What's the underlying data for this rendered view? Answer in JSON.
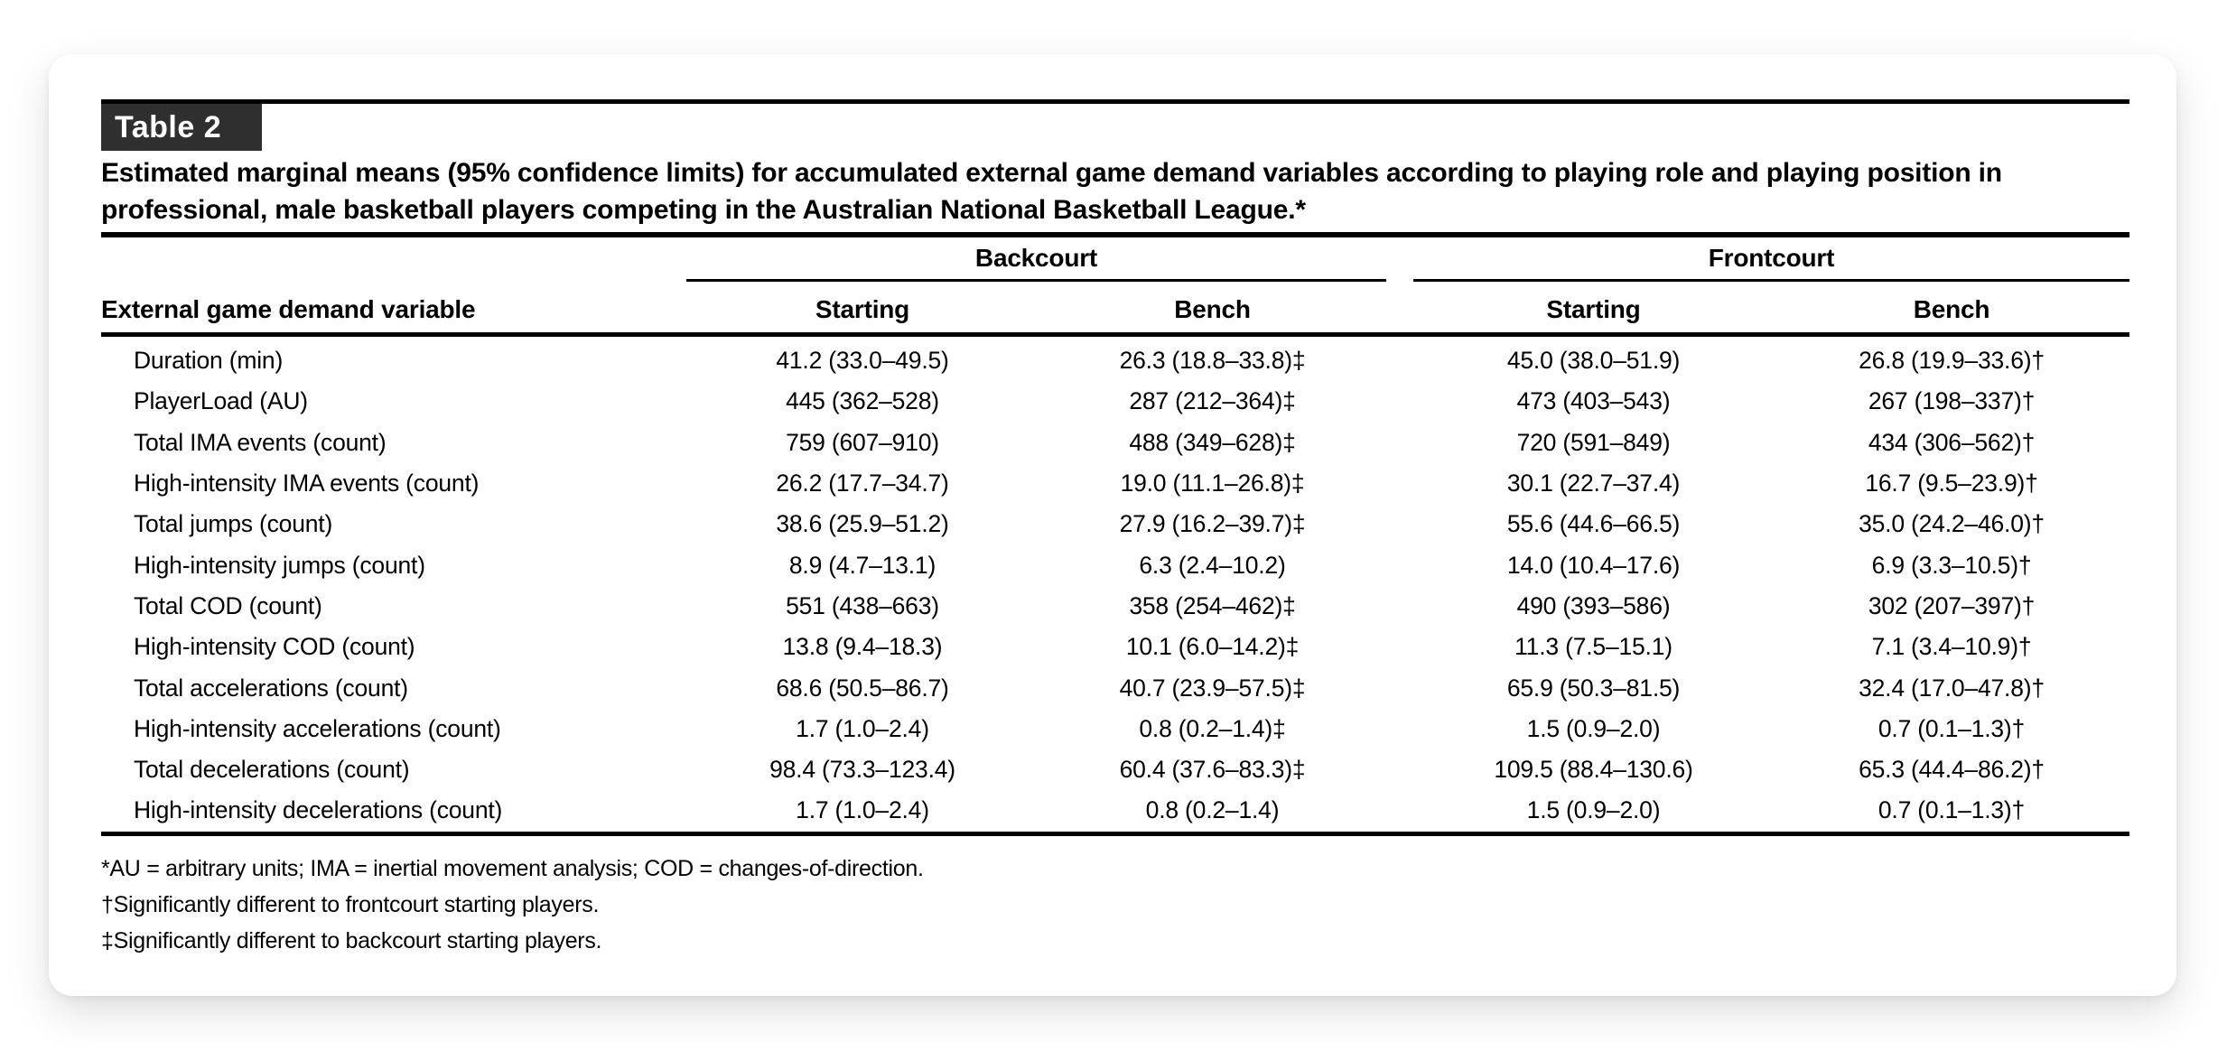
{
  "colors": {
    "badge_bg": "#2f2f2f",
    "badge_text": "#ffffff",
    "card_bg": "#ffffff",
    "rule": "#000000",
    "text": "#000000"
  },
  "table": {
    "badge": "Table 2",
    "title": "Estimated marginal means (95% confidence limits) for accumulated external game demand variables according to playing role and playing position in professional, male basketball players competing in the Australian National Basketball League.*",
    "variable_header": "External game demand variable",
    "groups": [
      {
        "label": "Backcourt",
        "columns": [
          "Starting",
          "Bench"
        ]
      },
      {
        "label": "Frontcourt",
        "columns": [
          "Starting",
          "Bench"
        ]
      }
    ],
    "rows": [
      {
        "variable": "Duration (min)",
        "values": [
          "41.2 (33.0–49.5)",
          "26.3 (18.8–33.8)‡",
          "45.0 (38.0–51.9)",
          "26.8 (19.9–33.6)†"
        ]
      },
      {
        "variable": "PlayerLoad (AU)",
        "values": [
          "445 (362–528)",
          "287 (212–364)‡",
          "473 (403–543)",
          "267 (198–337)†"
        ]
      },
      {
        "variable": "Total IMA events (count)",
        "values": [
          "759 (607–910)",
          "488 (349–628)‡",
          "720 (591–849)",
          "434 (306–562)†"
        ]
      },
      {
        "variable": "High-intensity IMA events (count)",
        "values": [
          "26.2 (17.7–34.7)",
          "19.0 (11.1–26.8)‡",
          "30.1 (22.7–37.4)",
          "16.7 (9.5–23.9)†"
        ]
      },
      {
        "variable": "Total jumps (count)",
        "values": [
          "38.6 (25.9–51.2)",
          "27.9 (16.2–39.7)‡",
          "55.6 (44.6–66.5)",
          "35.0 (24.2–46.0)†"
        ]
      },
      {
        "variable": "High-intensity jumps (count)",
        "values": [
          "8.9 (4.7–13.1)",
          "6.3 (2.4–10.2)",
          "14.0 (10.4–17.6)",
          "6.9 (3.3–10.5)†"
        ]
      },
      {
        "variable": "Total COD (count)",
        "values": [
          "551 (438–663)",
          "358 (254–462)‡",
          "490 (393–586)",
          "302 (207–397)†"
        ]
      },
      {
        "variable": "High-intensity COD (count)",
        "values": [
          "13.8 (9.4–18.3)",
          "10.1 (6.0–14.2)‡",
          "11.3 (7.5–15.1)",
          "7.1 (3.4–10.9)†"
        ]
      },
      {
        "variable": "Total accelerations (count)",
        "values": [
          "68.6 (50.5–86.7)",
          "40.7 (23.9–57.5)‡",
          "65.9 (50.3–81.5)",
          "32.4 (17.0–47.8)†"
        ]
      },
      {
        "variable": "High-intensity accelerations (count)",
        "values": [
          "1.7 (1.0–2.4)",
          "0.8 (0.2–1.4)‡",
          "1.5 (0.9–2.0)",
          "0.7 (0.1–1.3)†"
        ]
      },
      {
        "variable": "Total decelerations (count)",
        "values": [
          "98.4 (73.3–123.4)",
          "60.4 (37.6–83.3)‡",
          "109.5 (88.4–130.6)",
          "65.3 (44.4–86.2)†"
        ]
      },
      {
        "variable": "High-intensity decelerations (count)",
        "values": [
          "1.7 (1.0–2.4)",
          "0.8 (0.2–1.4)",
          "1.5 (0.9–2.0)",
          "0.7 (0.1–1.3)†"
        ]
      }
    ],
    "footnotes": [
      "*AU = arbitrary units; IMA = inertial movement analysis; COD = changes-of-direction.",
      "†Significantly different to frontcourt starting players.",
      "‡Significantly different to backcourt starting players."
    ]
  }
}
